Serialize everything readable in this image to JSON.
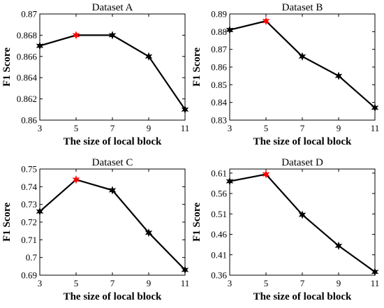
{
  "chart_data": [
    {
      "type": "line",
      "title": "Dataset A",
      "xlabel": "The size of local block",
      "ylabel": "F1 Score",
      "x": [
        3,
        5,
        7,
        9,
        11
      ],
      "xticks": [
        "3",
        "5",
        "7",
        "9",
        "11"
      ],
      "xlim": [
        3,
        11
      ],
      "ylim": [
        0.86,
        0.87
      ],
      "yticks": [
        0.86,
        0.862,
        0.864,
        0.866,
        0.868,
        0.87
      ],
      "ytick_labels": [
        "0.86",
        "0.862",
        "0.864",
        "0.866",
        "0.868",
        "0.87"
      ],
      "values": [
        0.867,
        0.868,
        0.868,
        0.866,
        0.861
      ],
      "highlight_index": 1,
      "line_color": "#000000",
      "highlight_color": "#ff0000"
    },
    {
      "type": "line",
      "title": "Dataset B",
      "xlabel": "The size of local block",
      "ylabel": "F1 Score",
      "x": [
        3,
        5,
        7,
        9,
        11
      ],
      "xticks": [
        "3",
        "5",
        "7",
        "9",
        "11"
      ],
      "xlim": [
        3,
        11
      ],
      "ylim": [
        0.83,
        0.89
      ],
      "yticks": [
        0.83,
        0.84,
        0.85,
        0.86,
        0.87,
        0.88,
        0.89
      ],
      "ytick_labels": [
        "0.83",
        "0.84",
        "0.85",
        "0.86",
        "0.87",
        "0.88",
        "0.89"
      ],
      "values": [
        0.881,
        0.886,
        0.866,
        0.855,
        0.837
      ],
      "highlight_index": 1,
      "line_color": "#000000",
      "highlight_color": "#ff0000"
    },
    {
      "type": "line",
      "title": "Dataset C",
      "xlabel": "The size of local block",
      "ylabel": "F1 Score",
      "x": [
        3,
        5,
        7,
        9,
        11
      ],
      "xticks": [
        "3",
        "5",
        "7",
        "9",
        "11"
      ],
      "xlim": [
        3,
        11
      ],
      "ylim": [
        0.69,
        0.75
      ],
      "yticks": [
        0.69,
        0.7,
        0.71,
        0.72,
        0.73,
        0.74,
        0.75
      ],
      "ytick_labels": [
        "0.69",
        "0.7",
        "0.71",
        "0.72",
        "0.73",
        "0.74",
        "0.75"
      ],
      "values": [
        0.726,
        0.744,
        0.738,
        0.714,
        0.693
      ],
      "highlight_index": 1,
      "line_color": "#000000",
      "highlight_color": "#ff0000"
    },
    {
      "type": "line",
      "title": "Dataset D",
      "xlabel": "The size of local block",
      "ylabel": "F1 Score",
      "x": [
        3,
        5,
        7,
        9,
        11
      ],
      "xticks": [
        "3",
        "5",
        "7",
        "9",
        "11"
      ],
      "xlim": [
        3,
        11
      ],
      "ylim": [
        0.36,
        0.62
      ],
      "yticks": [
        0.36,
        0.41,
        0.46,
        0.51,
        0.56,
        0.61
      ],
      "ytick_labels": [
        "0.36",
        "0.41",
        "0.46",
        "0.51",
        "0.56",
        "0.61"
      ],
      "values": [
        0.59,
        0.607,
        0.508,
        0.432,
        0.368
      ],
      "highlight_index": 1,
      "line_color": "#000000",
      "highlight_color": "#ff0000"
    }
  ]
}
